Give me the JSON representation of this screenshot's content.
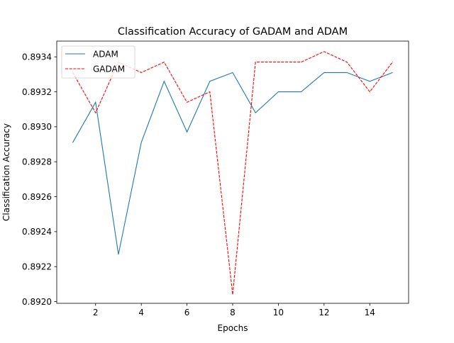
{
  "chart_data": {
    "type": "line",
    "title": "Classification Accuracy of GADAM and ADAM",
    "xlabel": "Epochs",
    "ylabel": "Classification Accuracy",
    "xlim": [
      0.3,
      15.7
    ],
    "ylim": [
      0.89199,
      0.89349
    ],
    "x_ticks": [
      2,
      4,
      6,
      8,
      10,
      12,
      14
    ],
    "x_tick_labels": [
      "2",
      "4",
      "6",
      "8",
      "10",
      "12",
      "14"
    ],
    "y_ticks": [
      0.892,
      0.8922,
      0.8924,
      0.8926,
      0.8928,
      0.893,
      0.8932,
      0.8934
    ],
    "y_tick_labels": [
      "0.8920",
      "0.8922",
      "0.8924",
      "0.8926",
      "0.8928",
      "0.8930",
      "0.8932",
      "0.8934"
    ],
    "grid": false,
    "legend": "upper left",
    "x": [
      1,
      2,
      3,
      4,
      5,
      6,
      7,
      8,
      9,
      10,
      11,
      12,
      13,
      14,
      15
    ],
    "series": [
      {
        "name": "ADAM",
        "color": "#1f77b4",
        "style": "solid",
        "values": [
          0.89291,
          0.89314,
          0.89227,
          0.89291,
          0.89326,
          0.89297,
          0.89326,
          0.89331,
          0.89308,
          0.8932,
          0.8932,
          0.89331,
          0.89331,
          0.89326,
          0.89331
        ]
      },
      {
        "name": "GADAM",
        "color": "#ff0000",
        "style": "dashed",
        "values": [
          0.89331,
          0.89308,
          0.89337,
          0.89331,
          0.89337,
          0.89314,
          0.8932,
          0.89204,
          0.89337,
          0.89337,
          0.89337,
          0.89343,
          0.89337,
          0.8932,
          0.89337
        ]
      }
    ]
  }
}
